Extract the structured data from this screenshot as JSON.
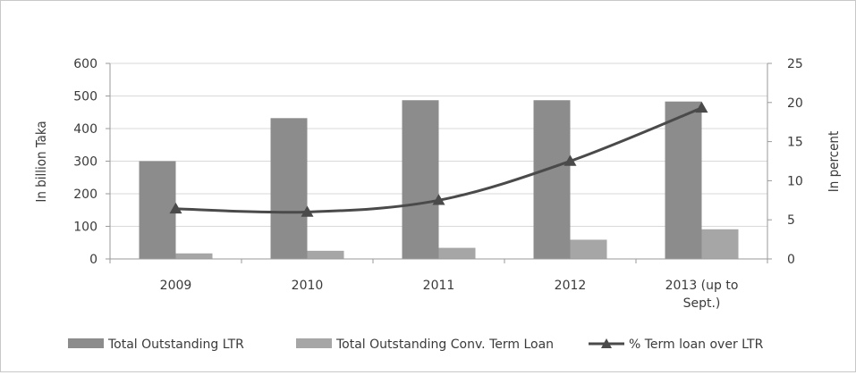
{
  "chart_data": {
    "type": "bar",
    "categories": [
      "2009",
      "2010",
      "2011",
      "2012",
      "2013 (up to Sept.)"
    ],
    "category_lines": [
      [
        "2009"
      ],
      [
        "2010"
      ],
      [
        "2011"
      ],
      [
        "2012"
      ],
      [
        "2013 (up to",
        "Sept.)"
      ]
    ],
    "series": [
      {
        "name": "Total Outstanding LTR",
        "type": "bar",
        "axis": "left",
        "color": "#8c8c8c",
        "values": [
          300,
          432,
          487,
          487,
          483
        ]
      },
      {
        "name": "Total Outstanding Conv. Term Loan",
        "type": "bar",
        "axis": "left",
        "color": "#a6a6a6",
        "values": [
          17,
          25,
          34,
          59,
          91
        ]
      },
      {
        "name": "% Term loan over LTR",
        "type": "line",
        "axis": "right",
        "color": "#4a4a4a",
        "marker": "triangle",
        "values": [
          6.4,
          6.0,
          7.5,
          12.5,
          19.3
        ]
      }
    ],
    "ylabel": "In billion Taka",
    "y2label": "In percent",
    "ylim": [
      0,
      600
    ],
    "y2lim": [
      0,
      25
    ],
    "yticks": [
      0,
      100,
      200,
      300,
      400,
      500,
      600
    ],
    "y2ticks": [
      0,
      5,
      10,
      15,
      20,
      25
    ],
    "grid": "horizontal",
    "legend": "bottom"
  }
}
